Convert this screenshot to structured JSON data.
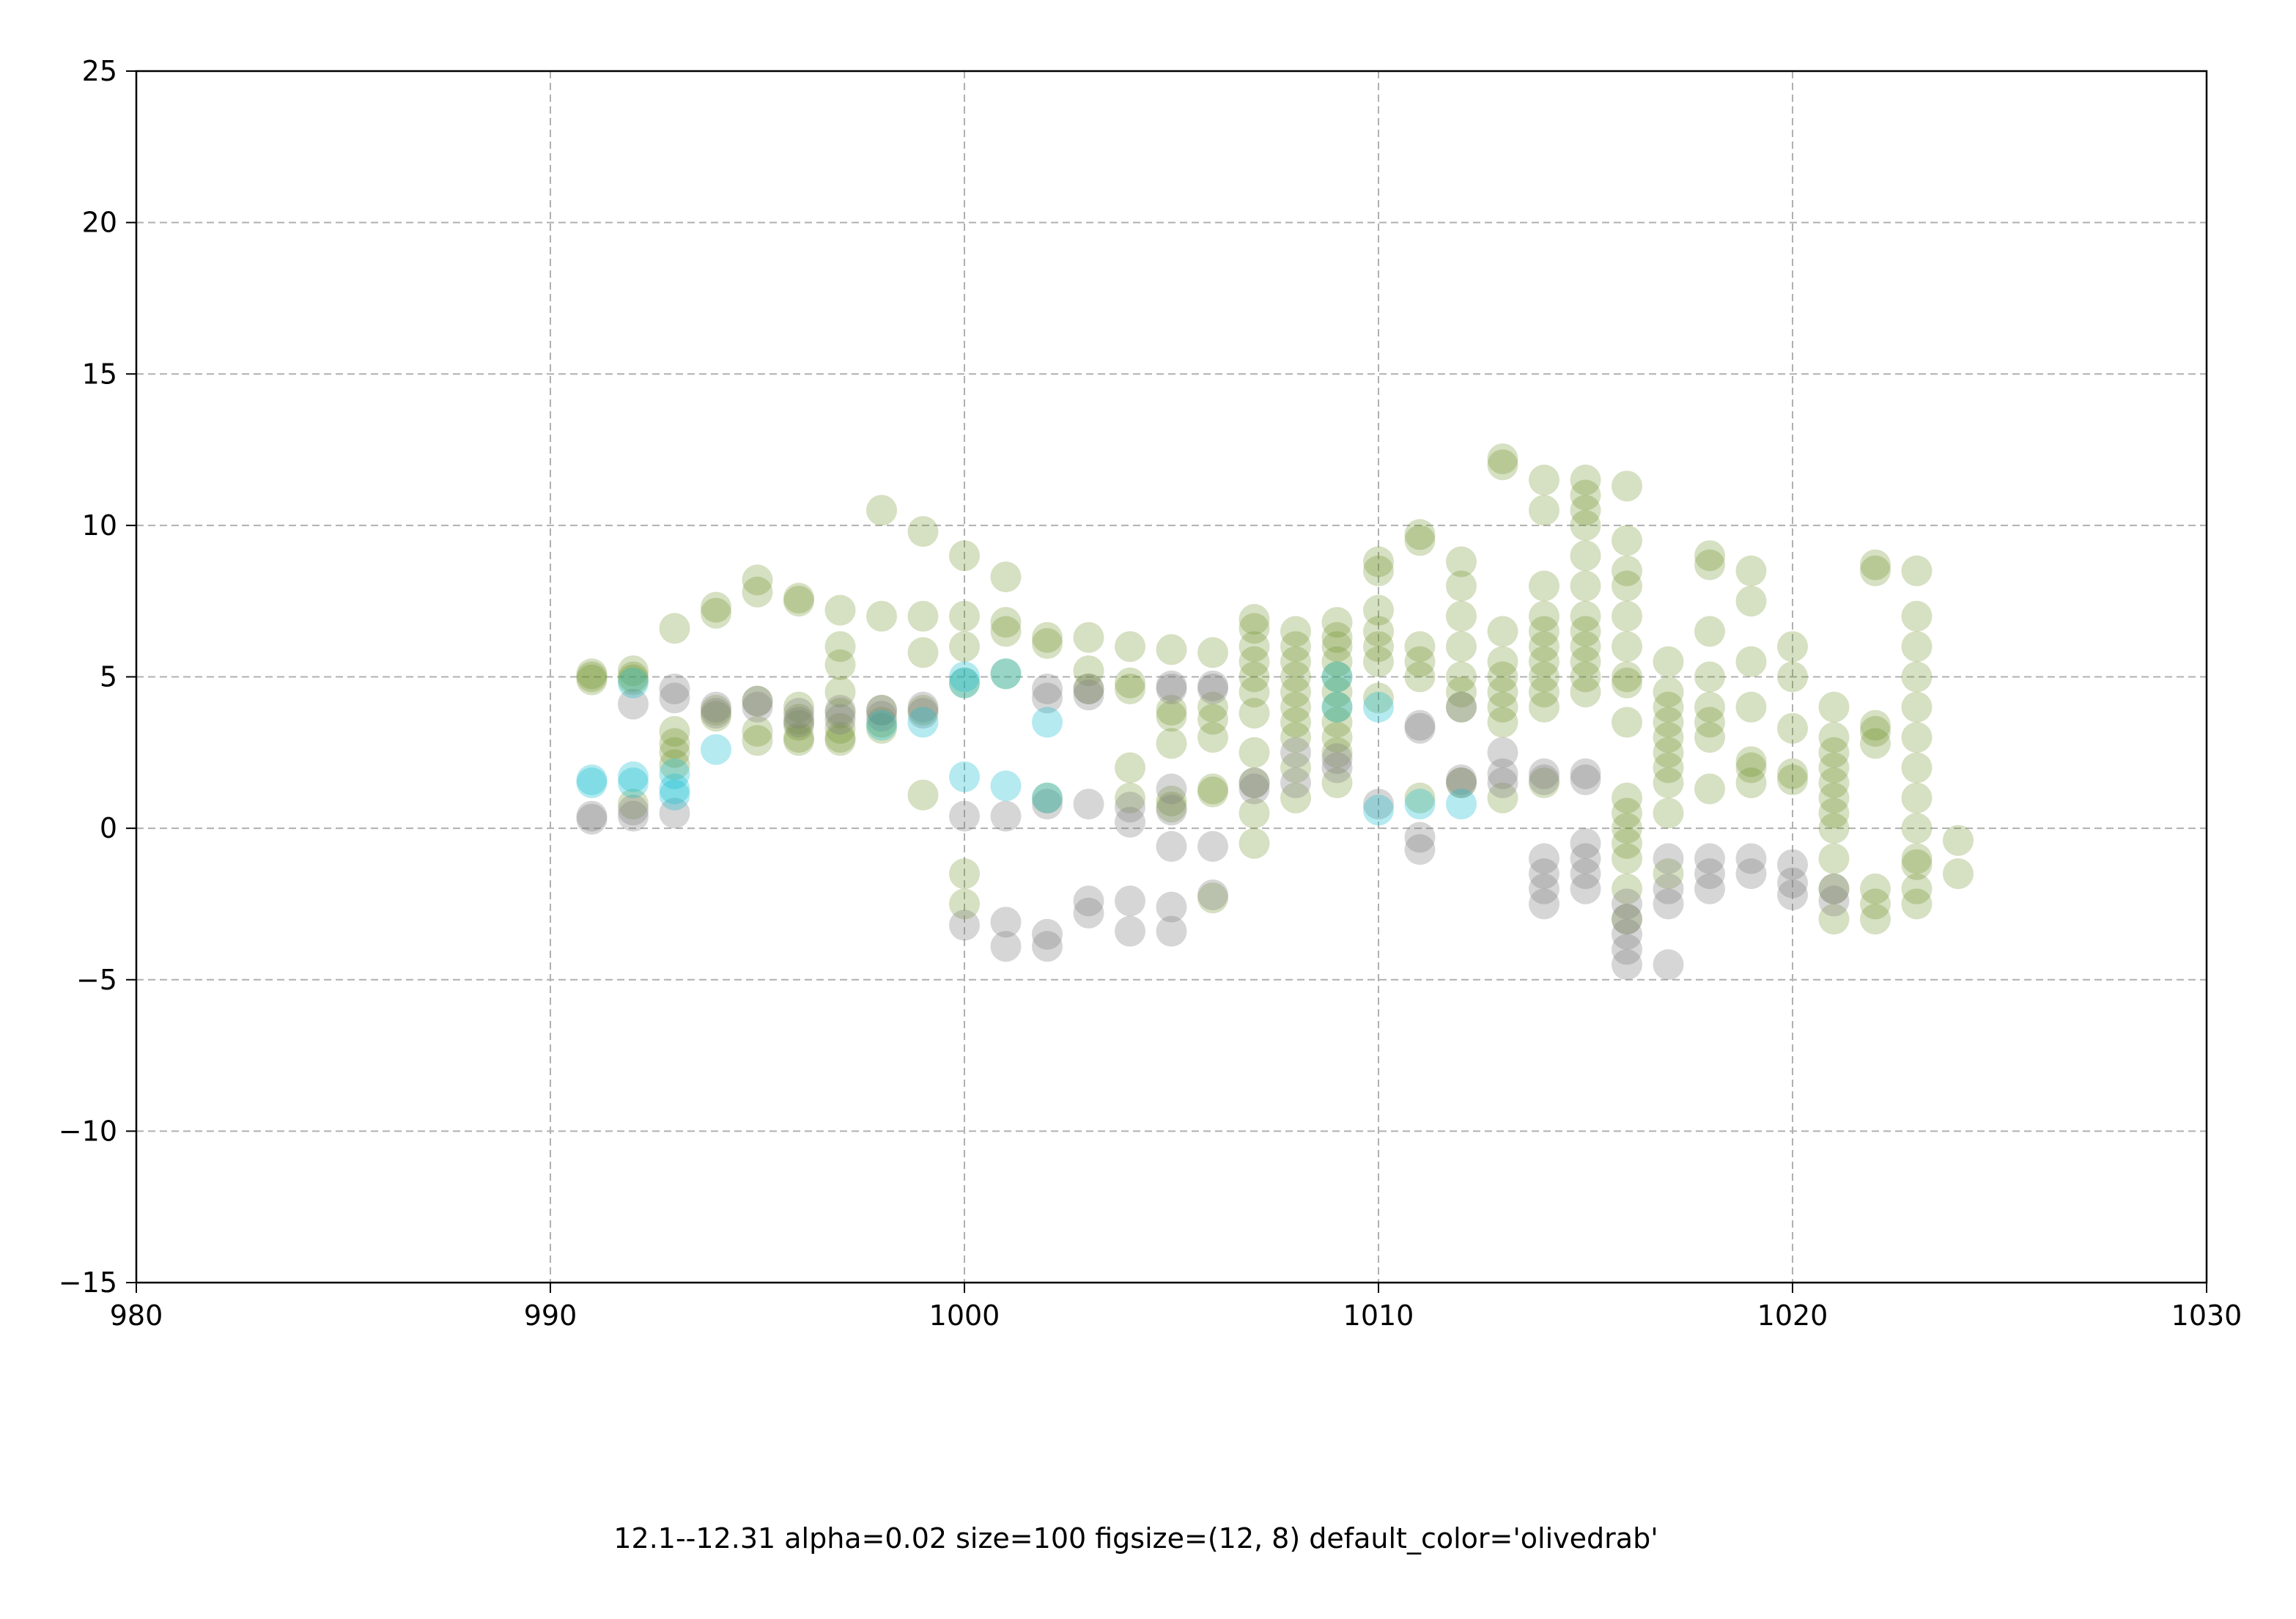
{
  "chart_data": {
    "type": "scatter",
    "caption": "12.1--12.31 alpha=0.02 size=100 figsize=(12, 8) default_color='olivedrab'",
    "xlim": [
      980,
      1030
    ],
    "ylim": [
      -15,
      25
    ],
    "x_ticks": [
      980,
      990,
      1000,
      1010,
      1020,
      1030
    ],
    "y_ticks": [
      -15,
      -10,
      -5,
      0,
      5,
      10,
      15,
      20,
      25
    ],
    "y_tick_labels": [
      "−15",
      "−10",
      "−5",
      "0",
      "5",
      "10",
      "15",
      "20",
      "25"
    ],
    "grid": true,
    "alpha_note": "points drawn with low alpha; darker spots = overlapping points",
    "colors": {
      "olive": "#6b8e23",
      "gray": "#808080",
      "cyan": "#17becf",
      "skyblue": "#5bc0eb",
      "teal": "#2e8b57"
    },
    "series": [
      {
        "name": "olivedrab",
        "color": "#6b8e23",
        "columns": [
          {
            "x": 991,
            "ys": [
              5.0,
              4.9,
              5.1
            ]
          },
          {
            "x": 992,
            "ys": [
              5.0,
              5.2,
              0.8,
              4.9
            ]
          },
          {
            "x": 993,
            "ys": [
              6.6,
              3.2,
              2.8,
              2.5,
              2.1
            ]
          },
          {
            "x": 994,
            "ys": [
              7.3,
              7.1,
              3.9,
              3.7
            ]
          },
          {
            "x": 995,
            "ys": [
              8.2,
              7.8,
              4.2,
              3.2,
              2.9
            ]
          },
          {
            "x": 996,
            "ys": [
              7.6,
              7.5,
              4.0,
              3.6,
              3.4,
              3.0,
              2.9
            ]
          },
          {
            "x": 997,
            "ys": [
              7.2,
              6.0,
              5.4,
              4.5,
              3.8,
              3.3,
              3.0,
              2.9
            ]
          },
          {
            "x": 998,
            "ys": [
              10.5,
              7.0,
              3.9,
              3.5,
              3.3
            ]
          },
          {
            "x": 999,
            "ys": [
              9.8,
              7.0,
              5.8,
              3.9,
              1.1
            ]
          },
          {
            "x": 1000,
            "ys": [
              9.0,
              7.0,
              6.0,
              4.8,
              -2.5,
              -1.5
            ]
          },
          {
            "x": 1001,
            "ys": [
              8.3,
              6.8,
              6.5,
              5.1
            ]
          },
          {
            "x": 1002,
            "ys": [
              6.3,
              6.1,
              1.0
            ]
          },
          {
            "x": 1003,
            "ys": [
              6.3,
              5.2,
              4.6
            ]
          },
          {
            "x": 1004,
            "ys": [
              6.0,
              4.8,
              4.6,
              2.0,
              1.0
            ]
          },
          {
            "x": 1005,
            "ys": [
              5.9,
              3.9,
              3.7,
              2.8,
              0.9,
              0.7
            ]
          },
          {
            "x": 1006,
            "ys": [
              5.8,
              4.0,
              3.6,
              3.0,
              1.3,
              1.2,
              -2.3
            ]
          },
          {
            "x": 1007,
            "ys": [
              6.9,
              6.6,
              6.0,
              5.5,
              5.0,
              4.5,
              3.8,
              2.5,
              1.5,
              0.5,
              -0.5
            ]
          },
          {
            "x": 1008,
            "ys": [
              6.5,
              6.0,
              5.5,
              5.0,
              4.5,
              4.0,
              3.5,
              3.0,
              2.0,
              1.0
            ]
          },
          {
            "x": 1009,
            "ys": [
              6.8,
              6.3,
              6.0,
              5.5,
              5.0,
              4.5,
              4.0,
              3.5,
              3.0,
              2.5,
              1.5
            ]
          },
          {
            "x": 1010,
            "ys": [
              8.8,
              8.5,
              7.2,
              6.5,
              6.0,
              5.5,
              4.3
            ]
          },
          {
            "x": 1011,
            "ys": [
              9.7,
              9.5,
              6.0,
              5.5,
              5.0,
              1.0
            ]
          },
          {
            "x": 1012,
            "ys": [
              8.8,
              8.0,
              7.0,
              6.0,
              5.0,
              4.5,
              4.0,
              1.5
            ]
          },
          {
            "x": 1013,
            "ys": [
              12.2,
              12.0,
              6.5,
              5.5,
              5.0,
              4.5,
              4.0,
              3.5,
              1.0
            ]
          },
          {
            "x": 1014,
            "ys": [
              11.5,
              10.5,
              8.0,
              7.0,
              6.5,
              6.0,
              5.5,
              5.0,
              4.5,
              4.0,
              1.5
            ]
          },
          {
            "x": 1015,
            "ys": [
              11.5,
              11.0,
              10.5,
              10.0,
              9.0,
              8.0,
              7.0,
              6.5,
              6.0,
              5.5,
              5.0,
              4.5
            ]
          },
          {
            "x": 1016,
            "ys": [
              11.3,
              9.5,
              8.5,
              8.0,
              7.0,
              6.0,
              5.0,
              4.8,
              3.5,
              1.0,
              0.5,
              0.0,
              -0.5,
              -1.0,
              -2.0,
              -3.0
            ]
          },
          {
            "x": 1017,
            "ys": [
              5.5,
              4.5,
              4.0,
              3.5,
              3.0,
              2.5,
              2.0,
              1.5,
              0.5,
              -1.5
            ]
          },
          {
            "x": 1018,
            "ys": [
              9.0,
              8.7,
              6.5,
              5.0,
              4.0,
              3.5,
              3.0,
              1.3
            ]
          },
          {
            "x": 1019,
            "ys": [
              8.5,
              7.5,
              5.5,
              4.0,
              2.2,
              2.0,
              1.5
            ]
          },
          {
            "x": 1020,
            "ys": [
              6.0,
              5.0,
              3.3,
              1.8,
              1.6
            ]
          },
          {
            "x": 1021,
            "ys": [
              4.0,
              3.0,
              2.5,
              2.0,
              1.5,
              1.0,
              0.5,
              0.0,
              -1.0,
              -2.0,
              -3.0
            ]
          },
          {
            "x": 1022,
            "ys": [
              8.7,
              8.5,
              3.4,
              3.2,
              2.8,
              -2.0,
              -2.5,
              -3.0
            ]
          },
          {
            "x": 1023,
            "ys": [
              8.5,
              7.0,
              6.0,
              5.0,
              4.0,
              3.0,
              2.0,
              1.0,
              0.0,
              -1.0,
              -1.2,
              -2.0,
              -2.5
            ]
          },
          {
            "x": 1024,
            "ys": [
              -0.4,
              -1.5
            ]
          }
        ]
      },
      {
        "name": "gray",
        "color": "#808080",
        "columns": [
          {
            "x": 991,
            "ys": [
              0.4,
              0.3
            ]
          },
          {
            "x": 992,
            "ys": [
              4.1,
              0.6,
              0.4
            ]
          },
          {
            "x": 993,
            "ys": [
              4.6,
              4.3,
              0.5
            ]
          },
          {
            "x": 994,
            "ys": [
              4.0,
              3.8
            ]
          },
          {
            "x": 995,
            "ys": [
              4.2,
              4.0
            ]
          },
          {
            "x": 996,
            "ys": [
              3.8,
              3.5
            ]
          },
          {
            "x": 997,
            "ys": [
              3.9,
              3.6
            ]
          },
          {
            "x": 998,
            "ys": [
              3.9,
              3.7
            ]
          },
          {
            "x": 999,
            "ys": [
              4.0,
              3.8
            ]
          },
          {
            "x": 1000,
            "ys": [
              0.4,
              -3.2
            ]
          },
          {
            "x": 1001,
            "ys": [
              0.4,
              -3.1,
              -3.9
            ]
          },
          {
            "x": 1002,
            "ys": [
              4.6,
              4.3,
              0.8,
              -3.5,
              -3.9
            ]
          },
          {
            "x": 1003,
            "ys": [
              4.6,
              4.4,
              0.8,
              -2.4,
              -2.8
            ]
          },
          {
            "x": 1004,
            "ys": [
              0.7,
              0.2,
              -2.4,
              -3.4
            ]
          },
          {
            "x": 1005,
            "ys": [
              4.7,
              4.6,
              1.3,
              0.6,
              -0.6,
              -2.6,
              -3.4
            ]
          },
          {
            "x": 1006,
            "ys": [
              4.7,
              4.6,
              -0.6,
              -2.2
            ]
          },
          {
            "x": 1007,
            "ys": [
              1.5,
              1.3
            ]
          },
          {
            "x": 1008,
            "ys": [
              2.5,
              1.5
            ]
          },
          {
            "x": 1009,
            "ys": [
              2.3,
              2.0
            ]
          },
          {
            "x": 1010,
            "ys": [
              0.8
            ]
          },
          {
            "x": 1011,
            "ys": [
              3.4,
              3.3,
              -0.3,
              -0.7
            ]
          },
          {
            "x": 1012,
            "ys": [
              4.0,
              1.6,
              1.5
            ]
          },
          {
            "x": 1013,
            "ys": [
              2.5,
              1.8,
              1.5
            ]
          },
          {
            "x": 1014,
            "ys": [
              1.8,
              1.6,
              -1.0,
              -1.5,
              -2.0,
              -2.5
            ]
          },
          {
            "x": 1015,
            "ys": [
              1.8,
              1.6,
              -0.5,
              -1.0,
              -1.5,
              -2.0
            ]
          },
          {
            "x": 1016,
            "ys": [
              -2.5,
              -3.0,
              -3.5,
              -4.0,
              -4.5
            ]
          },
          {
            "x": 1017,
            "ys": [
              -1.0,
              -2.0,
              -2.5,
              -4.5
            ]
          },
          {
            "x": 1018,
            "ys": [
              -1.0,
              -1.5,
              -2.0
            ]
          },
          {
            "x": 1019,
            "ys": [
              -1.0,
              -1.5
            ]
          },
          {
            "x": 1020,
            "ys": [
              -1.2,
              -1.8,
              -2.2
            ]
          },
          {
            "x": 1021,
            "ys": [
              -2.0,
              -2.4
            ]
          },
          {
            "x": 1022,
            "ys": []
          },
          {
            "x": 1023,
            "ys": []
          }
        ]
      },
      {
        "name": "cyan",
        "color": "#17becf",
        "columns": [
          {
            "x": 991,
            "ys": [
              1.6,
              1.5
            ]
          },
          {
            "x": 992,
            "ys": [
              1.7,
              1.5,
              4.8
            ]
          },
          {
            "x": 993,
            "ys": [
              1.8,
              1.3,
              1.1
            ]
          },
          {
            "x": 994,
            "ys": [
              2.6
            ]
          },
          {
            "x": 998,
            "ys": [
              3.4
            ]
          },
          {
            "x": 999,
            "ys": [
              3.5
            ]
          },
          {
            "x": 1000,
            "ys": [
              5.0,
              4.8,
              1.7
            ]
          },
          {
            "x": 1001,
            "ys": [
              5.1,
              1.4
            ]
          },
          {
            "x": 1002,
            "ys": [
              3.5,
              1.0
            ]
          },
          {
            "x": 1009,
            "ys": [
              4.0,
              5.0
            ]
          },
          {
            "x": 1010,
            "ys": [
              4.0,
              0.6
            ]
          },
          {
            "x": 1011,
            "ys": [
              0.8
            ]
          },
          {
            "x": 1012,
            "ys": [
              0.8
            ]
          }
        ]
      }
    ]
  }
}
